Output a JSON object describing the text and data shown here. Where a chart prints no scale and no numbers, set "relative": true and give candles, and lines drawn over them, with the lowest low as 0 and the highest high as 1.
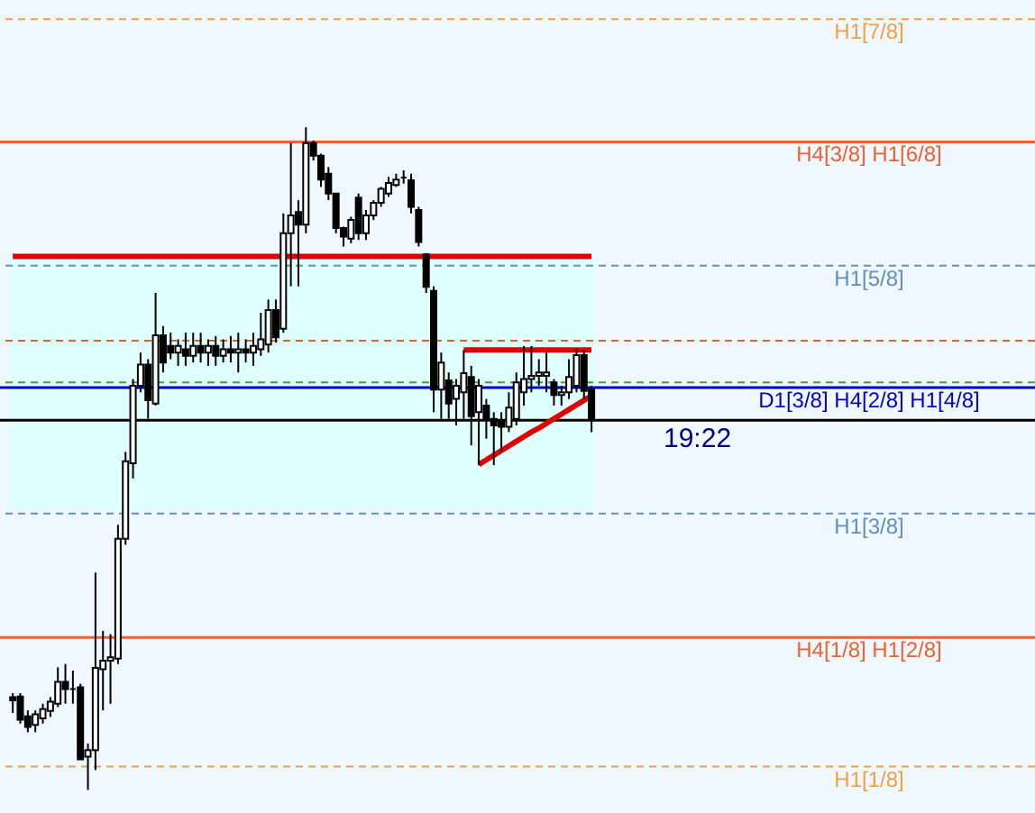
{
  "chart_data": {
    "type": "candlestick",
    "relative": true,
    "categories": [
      null,
      null,
      null,
      null,
      null,
      null,
      null,
      null,
      null,
      null,
      null,
      null,
      null,
      null,
      null,
      null,
      null,
      null,
      null,
      null,
      null,
      null,
      null,
      null,
      null,
      null,
      null,
      null,
      null,
      null,
      null,
      null,
      null,
      null,
      null,
      null,
      null,
      null,
      null,
      null,
      null,
      null,
      null,
      null,
      null,
      null,
      null,
      null,
      null,
      null,
      null,
      null,
      null,
      null,
      null,
      null,
      null,
      null,
      null,
      null,
      null,
      null,
      null,
      null,
      null,
      null,
      null,
      null,
      null,
      null,
      null,
      null,
      null,
      null,
      null,
      null,
      null,
      null
    ],
    "ohlc": [
      [
        0.14,
        0.146,
        0.116,
        0.135
      ],
      [
        0.141,
        0.146,
        0.1,
        0.106
      ],
      [
        0.111,
        0.12,
        0.087,
        0.095
      ],
      [
        0.098,
        0.12,
        0.087,
        0.114
      ],
      [
        0.108,
        0.13,
        0.1,
        0.122
      ],
      [
        0.119,
        0.14,
        0.11,
        0.133
      ],
      [
        0.13,
        0.185,
        0.125,
        0.163
      ],
      [
        0.163,
        0.19,
        0.13,
        0.152
      ],
      [
        0.152,
        0.18,
        0.13,
        0.152
      ],
      [
        0.155,
        0.16,
        0.046,
        0.046
      ],
      [
        0.05,
        0.07,
        0,
        0.06
      ],
      [
        0.06,
        0.328,
        0.03,
        0.184
      ],
      [
        0.182,
        0.24,
        0.12,
        0.195
      ],
      [
        0.195,
        0.235,
        0.13,
        0.2
      ],
      [
        0.198,
        0.4,
        0.19,
        0.379
      ],
      [
        0.379,
        0.51,
        0.37,
        0.496
      ],
      [
        0.493,
        0.62,
        0.47,
        0.61
      ],
      [
        0.61,
        0.66,
        0.6,
        0.642
      ],
      [
        0.642,
        0.65,
        0.56,
        0.588
      ],
      [
        0.583,
        0.75,
        0.58,
        0.686
      ],
      [
        0.686,
        0.7,
        0.63,
        0.645
      ],
      [
        0.67,
        0.69,
        0.65,
        0.66
      ],
      [
        0.66,
        0.68,
        0.64,
        0.67
      ],
      [
        0.665,
        0.69,
        0.64,
        0.655
      ],
      [
        0.655,
        0.69,
        0.645,
        0.67
      ],
      [
        0.67,
        0.69,
        0.645,
        0.66
      ],
      [
        0.66,
        0.68,
        0.64,
        0.67
      ],
      [
        0.67,
        0.685,
        0.64,
        0.655
      ],
      [
        0.655,
        0.68,
        0.645,
        0.665
      ],
      [
        0.665,
        0.685,
        0.645,
        0.66
      ],
      [
        0.66,
        0.69,
        0.63,
        0.665
      ],
      [
        0.665,
        0.68,
        0.645,
        0.66
      ],
      [
        0.66,
        0.69,
        0.64,
        0.67
      ],
      [
        0.665,
        0.72,
        0.655,
        0.68
      ],
      [
        0.672,
        0.74,
        0.66,
        0.724
      ],
      [
        0.724,
        0.74,
        0.675,
        0.683
      ],
      [
        0.696,
        0.87,
        0.69,
        0.84
      ],
      [
        0.84,
        0.976,
        0.76,
        0.867
      ],
      [
        0.872,
        0.89,
        0.76,
        0.853
      ],
      [
        0.853,
        1.0,
        0.84,
        0.976
      ],
      [
        0.976,
        0.98,
        0.95,
        0.957
      ],
      [
        0.957,
        0.96,
        0.91,
        0.921
      ],
      [
        0.93,
        0.94,
        0.89,
        0.9
      ],
      [
        0.9,
        0.9,
        0.84,
        0.848
      ],
      [
        0.848,
        0.85,
        0.82,
        0.835
      ],
      [
        0.832,
        0.865,
        0.825,
        0.86
      ],
      [
        0.894,
        0.9,
        0.83,
        0.84
      ],
      [
        0.84,
        0.875,
        0.83,
        0.867
      ],
      [
        0.867,
        0.89,
        0.86,
        0.886
      ],
      [
        0.886,
        0.91,
        0.88,
        0.907
      ],
      [
        0.9,
        0.925,
        0.895,
        0.916
      ],
      [
        0.913,
        0.93,
        0.91,
        0.921
      ],
      [
        0.924,
        0.935,
        0.915,
        0.924
      ],
      [
        0.92,
        0.93,
        0.87,
        0.88
      ],
      [
        0.875,
        0.88,
        0.82,
        0.827
      ],
      [
        0.808,
        0.81,
        0.75,
        0.759
      ],
      [
        0.753,
        0.76,
        0.57,
        0.604
      ],
      [
        0.604,
        0.66,
        0.56,
        0.645
      ],
      [
        0.618,
        0.63,
        0.56,
        0.583
      ],
      [
        0.59,
        0.62,
        0.55,
        0.61
      ],
      [
        0.6,
        0.664,
        0.56,
        0.629
      ],
      [
        0.623,
        0.64,
        0.52,
        0.564
      ],
      [
        0.57,
        0.62,
        0.49,
        0.61
      ],
      [
        0.58,
        0.59,
        0.53,
        0.56
      ],
      [
        0.56,
        0.57,
        0.49,
        0.55
      ],
      [
        0.556,
        0.57,
        0.51,
        0.548
      ],
      [
        0.548,
        0.6,
        0.54,
        0.577
      ],
      [
        0.56,
        0.63,
        0.55,
        0.615
      ],
      [
        0.6,
        0.67,
        0.58,
        0.62
      ],
      [
        0.62,
        0.67,
        0.6,
        0.625
      ],
      [
        0.625,
        0.65,
        0.61,
        0.63
      ],
      [
        0.625,
        0.66,
        0.6,
        0.63
      ],
      [
        0.615,
        0.62,
        0.58,
        0.596
      ],
      [
        0.596,
        0.61,
        0.58,
        0.6
      ],
      [
        0.6,
        0.65,
        0.59,
        0.623
      ],
      [
        0.61,
        0.665,
        0.6,
        0.656
      ],
      [
        0.656,
        0.664,
        0.59,
        0.602
      ],
      [
        0.604,
        0.61,
        0.54,
        0.56
      ]
    ],
    "series": [
      {
        "type": "line",
        "values": [
          0.805,
          0.805,
          0.805,
          0.805,
          0.805,
          0.805,
          0.805,
          0.805,
          0.805,
          0.805,
          0.805,
          0.805,
          0.805,
          0.805,
          0.805,
          0.805,
          0.805,
          0.805,
          0.805,
          0.805,
          0.805,
          0.805,
          0.805,
          0.805,
          0.805,
          0.805,
          0.805,
          0.805,
          0.805,
          0.805,
          0.805,
          0.805,
          0.805,
          0.805,
          0.805,
          0.805,
          0.805,
          0.805,
          0.805,
          0.805,
          0.805,
          0.805,
          0.805,
          0.805,
          0.805,
          0.805,
          0.805,
          0.805,
          0.805,
          0.805,
          0.805,
          0.805,
          0.805,
          0.805,
          0.805,
          0.805,
          0.805,
          0.805,
          0.805,
          0.805,
          0.805,
          0.805,
          0.805,
          0.805,
          0.805,
          0.805,
          0.805,
          0.805,
          0.805,
          0.805,
          0.805,
          0.805,
          0.805,
          0.805,
          0.805,
          0.805,
          0.805,
          0.805
        ],
        "color": "#e00000"
      },
      {
        "type": "line",
        "values": [
          null,
          null,
          null,
          null,
          null,
          null,
          null,
          null,
          null,
          null,
          null,
          null,
          null,
          null,
          null,
          null,
          null,
          null,
          null,
          null,
          null,
          null,
          null,
          null,
          null,
          null,
          null,
          null,
          null,
          null,
          null,
          null,
          null,
          null,
          null,
          null,
          null,
          null,
          null,
          null,
          null,
          null,
          null,
          null,
          null,
          null,
          null,
          null,
          null,
          null,
          null,
          null,
          null,
          null,
          null,
          null,
          null,
          null,
          null,
          null,
          0.664,
          0.664,
          0.664,
          0.664,
          0.664,
          0.664,
          0.664,
          0.664,
          0.664,
          0.664,
          0.664,
          0.664,
          0.664,
          0.664,
          0.664,
          0.664,
          0.664,
          0.664
        ],
        "color": "#e00000"
      },
      {
        "type": "line",
        "values": [
          null,
          null,
          null,
          null,
          null,
          null,
          null,
          null,
          null,
          null,
          null,
          null,
          null,
          null,
          null,
          null,
          null,
          null,
          null,
          null,
          null,
          null,
          null,
          null,
          null,
          null,
          null,
          null,
          null,
          null,
          null,
          null,
          null,
          null,
          null,
          null,
          null,
          null,
          null,
          null,
          null,
          null,
          null,
          null,
          null,
          null,
          null,
          null,
          null,
          null,
          null,
          null,
          null,
          null,
          null,
          null,
          null,
          null,
          null,
          null,
          null,
          null,
          0.491,
          0.498,
          0.505,
          0.512,
          0.519,
          0.526,
          0.533,
          0.54,
          0.546,
          0.553,
          0.56,
          0.567,
          0.574,
          0.581,
          0.588,
          0.595
        ],
        "color": "#e00000"
      }
    ],
    "ref_lines": [
      {
        "axis": "y",
        "value": 1.163,
        "label": "H1[7/8]",
        "color": "#f0a040",
        "line_style": "dashed"
      },
      {
        "axis": "y",
        "value": 0.978,
        "label": "H4[3/8] H1[6/8]",
        "color": "#f06030",
        "line_style": "solid"
      },
      {
        "axis": "y",
        "value": 0.791,
        "label": "H1[5/8]",
        "color": "#6090c0",
        "line_style": "dashed"
      },
      {
        "axis": "y",
        "value": 0.678,
        "label": null,
        "color": "#e06030",
        "line_style": "dashed"
      },
      {
        "axis": "y",
        "value": 0.615,
        "label": null,
        "color": "#40a040",
        "line_style": "dashed"
      },
      {
        "axis": "y",
        "value": 0.607,
        "label": "D1[3/8] H4[2/8] H1[4/8]",
        "color": "#0000cc",
        "line_style": "solid"
      },
      {
        "axis": "y",
        "value": 0.558,
        "label": null,
        "color": "#000000",
        "line_style": "solid"
      },
      {
        "axis": "y",
        "value": 0.417,
        "label": "H1[3/8]",
        "color": "#6090c0",
        "line_style": "dashed"
      },
      {
        "axis": "y",
        "value": 0.23,
        "label": "H4[1/8] H1[2/8]",
        "color": "#f06030",
        "line_style": "solid"
      },
      {
        "axis": "y",
        "value": 0.035,
        "label": "H1[1/8]",
        "color": "#f0a040",
        "line_style": "dashed"
      }
    ],
    "bands": [
      {
        "axis": "y",
        "from": 0.425,
        "to": 0.805,
        "label": null,
        "color": "#e0ffff"
      }
    ],
    "annotations": [
      {
        "text": "19:22",
        "y": 0.558
      }
    ]
  }
}
